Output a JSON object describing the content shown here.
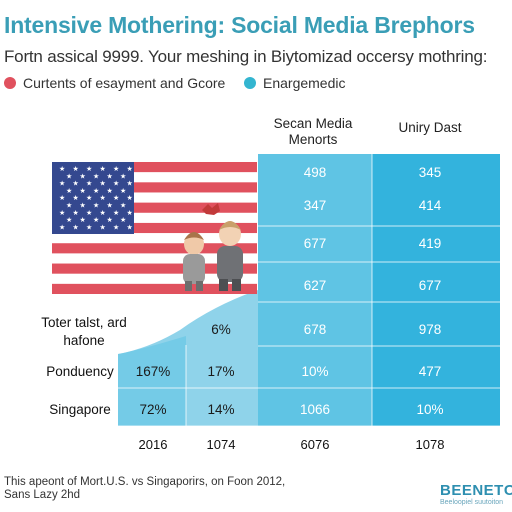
{
  "header": {
    "title": "Intensive Mothering: Social Media Brephors",
    "subtitle": "Fortn assical 9999. Your meshing in Biytomizad occersy mothring:"
  },
  "legend": [
    {
      "label": "Curtents of esayment and Gcore",
      "color": "#e0515e"
    },
    {
      "label": "Enargemedic",
      "color": "#33b5d0"
    }
  ],
  "chart_data": {
    "type": "table",
    "column_headers": [
      "",
      "",
      "Secan Media Menorts",
      "Uniry Dast"
    ],
    "rows": [
      {
        "label": "",
        "values": [
          "",
          "",
          "498",
          "345"
        ]
      },
      {
        "label": "",
        "values": [
          "",
          "",
          "347",
          "414"
        ]
      },
      {
        "label": "",
        "values": [
          "",
          "",
          "677",
          "419"
        ]
      },
      {
        "label": "",
        "values": [
          "",
          "",
          "627",
          "677"
        ]
      },
      {
        "label": "Toter talst, ard hafone",
        "values": [
          "",
          "6%",
          "678",
          "978"
        ]
      },
      {
        "label": "Ponduency",
        "values": [
          "167%",
          "17%",
          "10%",
          "477"
        ]
      },
      {
        "label": "Singapore",
        "values": [
          "72%",
          "14%",
          "1066",
          "10%"
        ]
      }
    ],
    "x_tick_labels": [
      "2016",
      "1074",
      "6076",
      "1078"
    ]
  },
  "colors": {
    "title": "#3a9eb6",
    "column_light": "#8fd3ea",
    "column_mid": "#5fc4e4",
    "column_strong": "#33b3dd",
    "flag_red": "#e0515e",
    "flag_blue": "#34488f"
  },
  "footer": {
    "note_line1": "This apeont of Mort.U.S. vs Singaporirs, on Foon 2012,",
    "note_line2": "Sans Lazy 2hd",
    "brand": "BEENETC",
    "brand_tagline": "Beeloopiel suutoiton"
  }
}
